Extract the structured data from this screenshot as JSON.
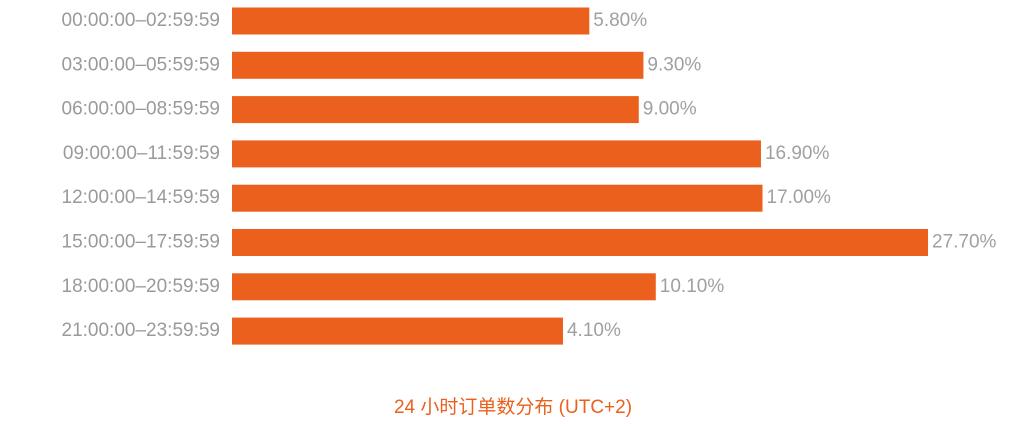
{
  "chart_data": {
    "type": "hbar",
    "title": "24 小时订单数分布 (UTC+2)",
    "categories": [
      "00:00:00–02:59:59",
      "03:00:00–05:59:59",
      "06:00:00–08:59:59",
      "09:00:00–11:59:59",
      "12:00:00–14:59:59",
      "15:00:00–17:59:59",
      "18:00:00–20:59:59",
      "21:00:00–23:59:59"
    ],
    "values": [
      5.8,
      9.3,
      9.0,
      16.9,
      17.0,
      27.7,
      10.1,
      4.1
    ],
    "value_labels": [
      "5.80%",
      "9.30%",
      "9.00%",
      "16.90%",
      "17.00%",
      "27.70%",
      "10.10%",
      "4.10%"
    ],
    "color": "#ea601c",
    "xlim": [
      -17.3,
      27.7
    ]
  }
}
